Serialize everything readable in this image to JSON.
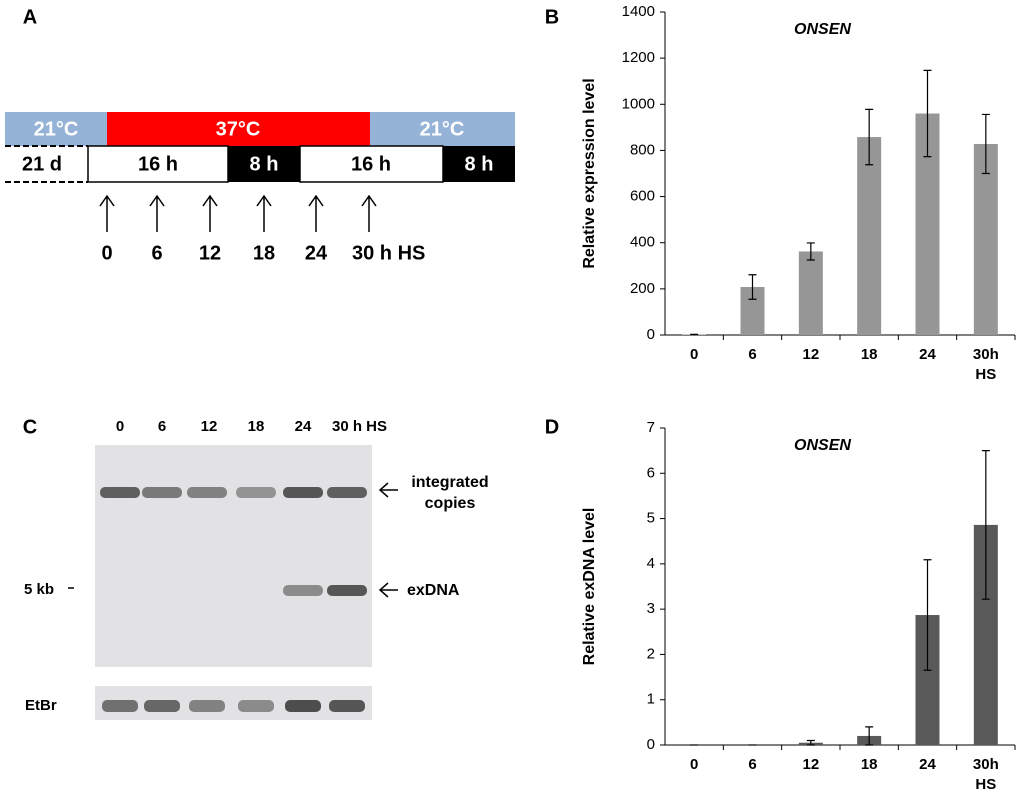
{
  "panel_a": {
    "label": "A",
    "temperatures": [
      "21°C",
      "37°C",
      "21°C"
    ],
    "durations": [
      "21 d",
      "16 h",
      "8 h",
      "16 h",
      "8 h"
    ],
    "time_points": [
      "0",
      "6",
      "12",
      "18",
      "24",
      "30 h HS"
    ]
  },
  "panel_c": {
    "label": "C",
    "lanes": [
      "0",
      "6",
      "12",
      "18",
      "24",
      "30 h HS"
    ],
    "annotations": [
      "integrated copies",
      "exDNA"
    ],
    "size_marker": "5 kb",
    "loading_label": "EtBr"
  },
  "chart_data": [
    {
      "type": "bar",
      "panel_label": "B",
      "title": "ONSEN",
      "y_label": "Relative expression level",
      "categories": [
        "0",
        "6",
        "12",
        "18",
        "24",
        "30h HS"
      ],
      "series": [
        {
          "color": "#969696",
          "values": [
            2,
            208,
            362,
            858,
            960,
            828
          ],
          "errors": [
            1,
            53,
            37,
            120,
            187,
            128
          ]
        }
      ],
      "ylim": [
        0,
        1400
      ],
      "yticks": [
        0,
        200,
        400,
        600,
        800,
        1000,
        1200,
        1400
      ]
    },
    {
      "type": "bar",
      "panel_label": "D",
      "title": "ONSEN",
      "y_label": "Relative exDNA level",
      "categories": [
        "0",
        "6",
        "12",
        "18",
        "24",
        "30h HS"
      ],
      "series": [
        {
          "color": "#595959",
          "values": [
            0,
            0,
            0.05,
            0.2,
            2.87,
            4.86
          ],
          "errors": [
            0,
            0,
            0.05,
            0.2,
            1.22,
            1.64
          ]
        }
      ],
      "ylim": [
        0,
        7
      ],
      "yticks": [
        0,
        1,
        2,
        3,
        4,
        5,
        6,
        7
      ]
    }
  ]
}
